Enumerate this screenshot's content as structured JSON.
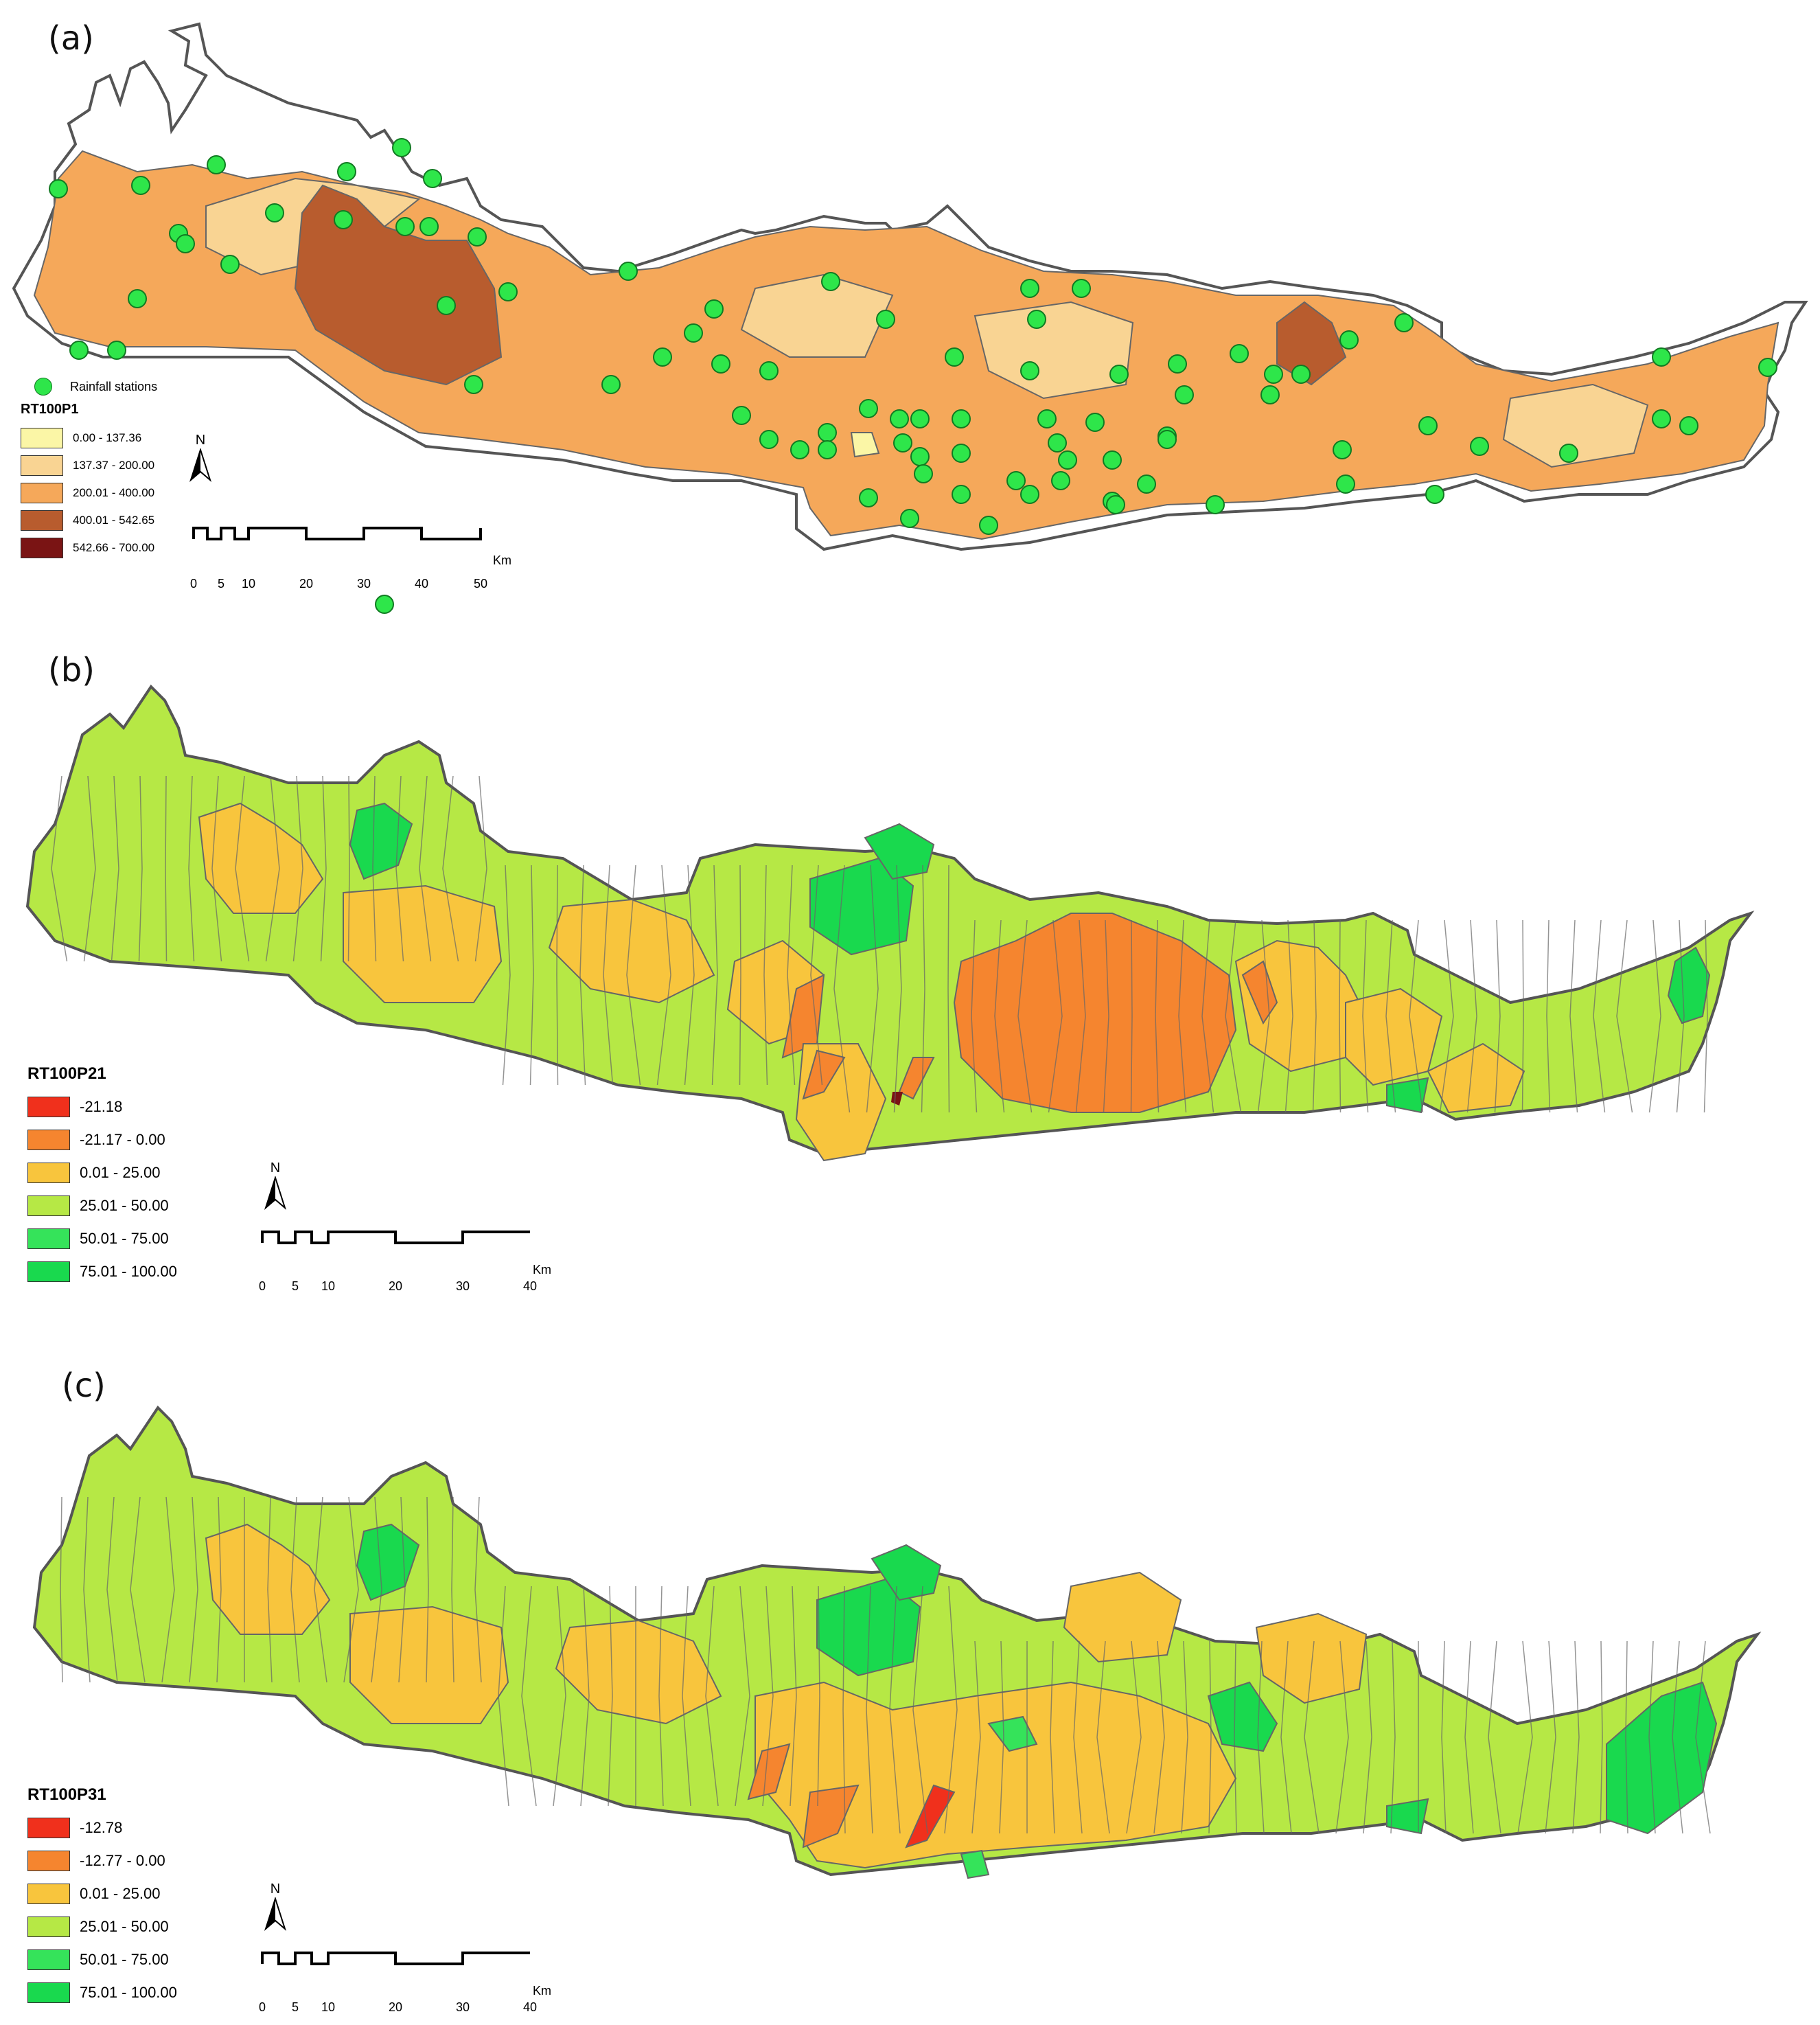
{
  "panels": [
    {
      "label": "(a)",
      "legend_title": "RT100P1",
      "stations_label": "Rainfall stations",
      "classes": [
        {
          "label": "0.00 - 137.36",
          "color": "#fbf6a6"
        },
        {
          "label": "137.37 - 200.00",
          "color": "#f9d493"
        },
        {
          "label": "200.01 - 400.00",
          "color": "#f5a85a"
        },
        {
          "label": "400.01 - 542.65",
          "color": "#b85c2e"
        },
        {
          "label": "542.66 - 700.00",
          "color": "#7a1414"
        }
      ],
      "scale": {
        "ticks": [
          "0",
          "5",
          "10",
          "20",
          "30",
          "40",
          "50"
        ],
        "unit": "Km"
      }
    },
    {
      "label": "(b)",
      "legend_title": "RT100P21",
      "classes": [
        {
          "label": "-21.18",
          "color": "#f0301c"
        },
        {
          "label": "-21.17 - 0.00",
          "color": "#f5852f"
        },
        {
          "label": "0.01 - 25.00",
          "color": "#f8c53d"
        },
        {
          "label": "25.01 - 50.00",
          "color": "#b6e845"
        },
        {
          "label": "50.01 - 75.00",
          "color": "#35e35a"
        },
        {
          "label": "75.01 - 100.00",
          "color": "#19d94e"
        }
      ],
      "scale": {
        "ticks": [
          "0",
          "5",
          "10",
          "20",
          "30",
          "40"
        ],
        "unit": "Km"
      }
    },
    {
      "label": "(c)",
      "legend_title": "RT100P31",
      "classes": [
        {
          "label": "-12.78",
          "color": "#f0301c"
        },
        {
          "label": "-12.77 - 0.00",
          "color": "#f5852f"
        },
        {
          "label": "0.01 - 25.00",
          "color": "#f8c53d"
        },
        {
          "label": "25.01 - 50.00",
          "color": "#b6e845"
        },
        {
          "label": "50.01 - 75.00",
          "color": "#35e35a"
        },
        {
          "label": "75.01 - 100.00",
          "color": "#19d94e"
        }
      ],
      "scale": {
        "ticks": [
          "0",
          "5",
          "10",
          "20",
          "30",
          "40"
        ],
        "unit": "Km"
      }
    }
  ],
  "north_letter": "N",
  "colors": {
    "island_outline": "#555555",
    "subbasin_line": "#666666",
    "station_fill": "#2ee64a"
  }
}
